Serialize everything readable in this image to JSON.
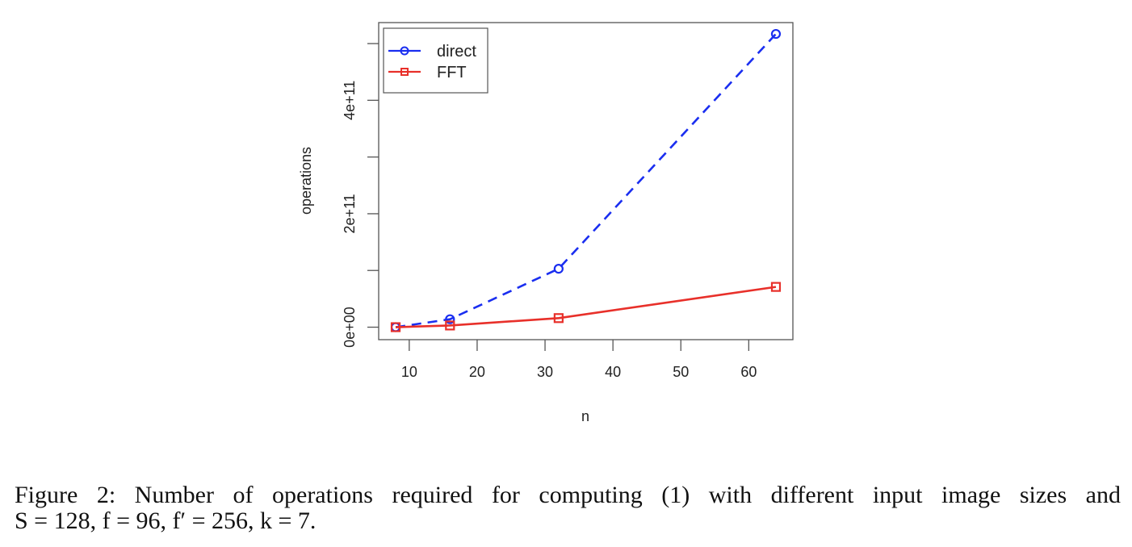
{
  "chart_data": {
    "type": "line",
    "title": "",
    "xlabel": "n",
    "ylabel": "operations",
    "x": [
      8,
      16,
      32,
      64
    ],
    "series": [
      {
        "name": "direct",
        "values": [
          0.0,
          14000000000.0,
          103000000000.0,
          517000000000.0
        ],
        "color": "#1a2ef0",
        "linestyle": "dashed",
        "marker": "circle"
      },
      {
        "name": "FFT",
        "values": [
          0.0,
          3000000000.0,
          16000000000.0,
          71000000000.0
        ],
        "color": "#e8302a",
        "linestyle": "solid",
        "marker": "square"
      }
    ],
    "xlim": [
      5.5,
      66.5
    ],
    "ylim": [
      -22000000000.0,
      537000000000.0
    ],
    "xticks": [
      10,
      20,
      30,
      40,
      50,
      60
    ],
    "xtick_labels": [
      "10",
      "20",
      "30",
      "40",
      "50",
      "60"
    ],
    "yticks": [
      0,
      100000000000.0,
      200000000000.0,
      300000000000.0,
      400000000000.0,
      500000000000.0
    ],
    "ytick_labels": [
      "0e+00",
      "",
      "2e+11",
      "",
      "4e+11",
      ""
    ],
    "legend_position": "top-left",
    "grid": false
  },
  "caption": {
    "line1": "Figure 2: Number of operations required for computing (1) with different input image sizes and",
    "line2": "S = 128, f = 96, f′ = 256, k = 7."
  }
}
